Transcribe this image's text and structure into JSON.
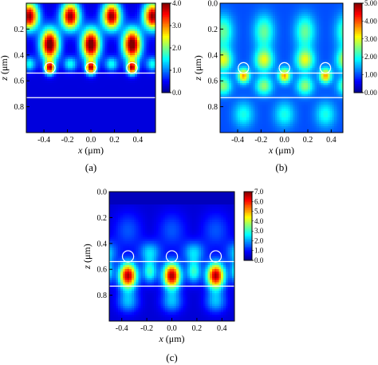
{
  "figure": {
    "colormap": [
      "#00008f",
      "#0000ff",
      "#0080ff",
      "#00ffff",
      "#80ff80",
      "#ffff00",
      "#ff8000",
      "#ff0000",
      "#800000"
    ],
    "interface_line_color": "#ffffff",
    "circle_color": "#ffffff"
  },
  "chart_data": [
    {
      "type": "heatmap",
      "panel_label": "(a)",
      "xlabel_var": "x",
      "xlabel_unit": "(μm)",
      "ylabel_var": "z",
      "ylabel_unit": "(μm)",
      "xlim": [
        -0.55,
        0.55
      ],
      "ylim": [
        0.0,
        1.0
      ],
      "y_inverted": true,
      "xticks": [
        -0.4,
        -0.2,
        0.0,
        0.2,
        0.4
      ],
      "xtick_labels": [
        "-0.4",
        "-0.2",
        "0.0",
        "0.2",
        "0.4"
      ],
      "yticks": [
        0.2,
        0.4,
        0.6,
        0.8
      ],
      "ytick_labels": [
        "0.2",
        "0.4",
        "0.6",
        "0.8"
      ],
      "colorbar": {
        "min": 0.0,
        "max": 4.0,
        "ticks": [
          0.0,
          1.0,
          2.0,
          3.0,
          4.0
        ],
        "tick_labels": [
          "0.0",
          "1.0",
          "2.0",
          "3.0",
          "4.0"
        ]
      },
      "interfaces_z": [
        0.54,
        0.73
      ],
      "particles": {
        "x_centers": [
          -0.35,
          0.0,
          0.35
        ],
        "z_center": 0.5,
        "radius": 0.045
      },
      "field": {
        "period_um": 0.35,
        "background": 0.35,
        "hotspots": [
          {
            "z": 0.1,
            "x_offset": 0.175,
            "peak": 3.6,
            "sx": 0.055,
            "sz": 0.075
          },
          {
            "z": 0.32,
            "x_offset": 0.0,
            "peak": 3.9,
            "sx": 0.055,
            "sz": 0.085
          },
          {
            "z": 0.5,
            "x_offset": 0.0,
            "peak": 3.2,
            "sx": 0.03,
            "sz": 0.035
          },
          {
            "z": 0.47,
            "x_offset": 0.175,
            "peak": 1.2,
            "sx": 0.04,
            "sz": 0.04
          }
        ]
      }
    },
    {
      "type": "heatmap",
      "panel_label": "(b)",
      "xlabel_var": "x",
      "xlabel_unit": "(μm)",
      "ylabel_var": "z",
      "ylabel_unit": "(μm)",
      "xlim": [
        -0.55,
        0.5
      ],
      "ylim": [
        0.0,
        1.0
      ],
      "y_inverted": true,
      "xticks": [
        -0.4,
        -0.2,
        0.0,
        0.2,
        0.4
      ],
      "xtick_labels": [
        "-0.4",
        "-0.2",
        "0.0",
        "0.2",
        "0.4"
      ],
      "yticks": [
        0.0,
        0.2,
        0.4,
        0.6,
        0.8
      ],
      "ytick_labels": [
        "0.0",
        "0.2",
        "0.4",
        "0.6",
        "0.8"
      ],
      "colorbar": {
        "min": 0.0,
        "max": 5.0,
        "ticks": [
          0.0,
          1.0,
          2.0,
          3.0,
          4.0,
          5.0
        ],
        "tick_labels": [
          "0.00",
          "1.00",
          "2.00",
          "3.00",
          "4.00",
          "5.00"
        ]
      },
      "interfaces_z": [
        0.54,
        0.73
      ],
      "particles": {
        "x_centers": [
          -0.35,
          0.0,
          0.35
        ],
        "z_center": 0.5,
        "radius": 0.045
      },
      "field": {
        "period_um": 0.35,
        "background": 1.0,
        "hotspots": [
          {
            "z": 0.22,
            "x_offset": 0.175,
            "peak": 1.4,
            "sx": 0.06,
            "sz": 0.09
          },
          {
            "z": 0.44,
            "x_offset": 0.175,
            "peak": 2.0,
            "sx": 0.055,
            "sz": 0.06
          },
          {
            "z": 0.56,
            "x_offset": 0.0,
            "peak": 2.6,
            "sx": 0.035,
            "sz": 0.04
          },
          {
            "z": 0.64,
            "x_offset": 0.175,
            "peak": 1.6,
            "sx": 0.05,
            "sz": 0.05
          },
          {
            "z": 0.86,
            "x_offset": 0.0,
            "peak": 1.0,
            "sx": 0.06,
            "sz": 0.07
          }
        ]
      }
    },
    {
      "type": "heatmap",
      "panel_label": "(c)",
      "xlabel_var": "x",
      "xlabel_unit": "(μm)",
      "ylabel_var": "z",
      "ylabel_unit": "(μm)",
      "xlim": [
        -0.5,
        0.5
      ],
      "ylim": [
        0.0,
        1.0
      ],
      "y_inverted": true,
      "xticks": [
        -0.4,
        -0.2,
        0.0,
        0.2,
        0.4
      ],
      "xtick_labels": [
        "-0.4",
        "-0.2",
        "0.0",
        "0.2",
        "0.4"
      ],
      "yticks": [
        0.0,
        0.2,
        0.4,
        0.6,
        0.8
      ],
      "ytick_labels": [
        "0.0",
        "0.2",
        "0.4",
        "0.6",
        "0.8"
      ],
      "colorbar": {
        "min": 0.0,
        "max": 7.0,
        "ticks": [
          0.0,
          1.0,
          2.0,
          3.0,
          4.0,
          5.0,
          6.0,
          7.0
        ],
        "tick_labels": [
          "0.0",
          "1.0",
          "2.0",
          "3.0",
          "4.0",
          "5.0",
          "6.0",
          "7.0"
        ]
      },
      "interfaces_z": [
        0.54,
        0.73
      ],
      "particles": {
        "x_centers": [
          -0.35,
          0.0,
          0.35
        ],
        "z_center": 0.5,
        "radius": 0.045
      },
      "field": {
        "period_um": 0.35,
        "background": 0.55,
        "top_layer_z": 0.1,
        "hotspots": [
          {
            "z": 0.65,
            "x_offset": 0.0,
            "peak": 6.2,
            "sx": 0.05,
            "sz": 0.07
          },
          {
            "z": 0.62,
            "x_offset": 0.175,
            "peak": 2.4,
            "sx": 0.04,
            "sz": 0.06
          },
          {
            "z": 0.47,
            "x_offset": 0.175,
            "peak": 1.8,
            "sx": 0.06,
            "sz": 0.06
          },
          {
            "z": 0.85,
            "x_offset": 0.0,
            "peak": 1.6,
            "sx": 0.06,
            "sz": 0.06
          },
          {
            "z": 0.3,
            "x_offset": 0.0,
            "peak": 0.9,
            "sx": 0.08,
            "sz": 0.1
          }
        ]
      }
    }
  ]
}
